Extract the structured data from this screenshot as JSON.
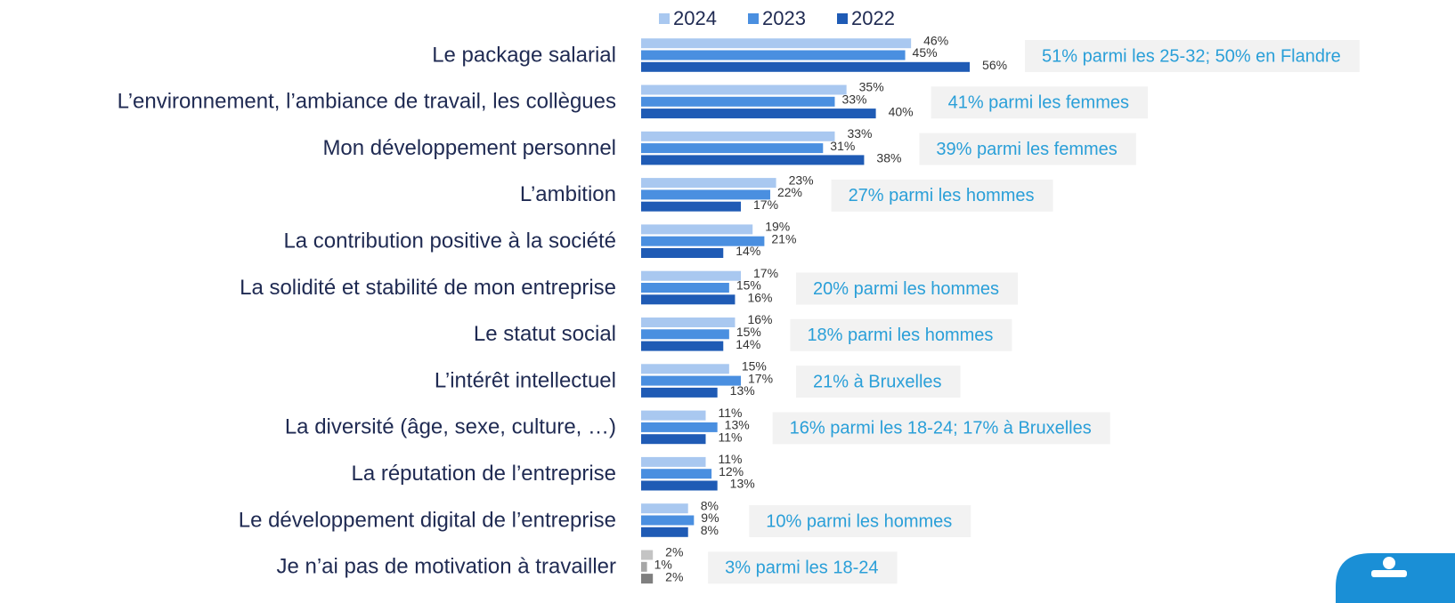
{
  "chart_data": {
    "type": "bar",
    "orientation": "horizontal",
    "categories": [
      "Le package salarial",
      "L’environnement, l’ambiance de travail, les collègues",
      "Mon développement personnel",
      "L’ambition",
      "La contribution positive à la société",
      "La solidité et stabilité de mon entreprise",
      "Le statut social",
      "L’intérêt intellectuel",
      "La diversité (âge, sexe, culture, …)",
      "La réputation de l’entreprise",
      "Le développement digital de l’entreprise",
      "Je n’ai pas de motivation à travailler"
    ],
    "series": [
      {
        "name": "2024",
        "color": "#a9c8f0",
        "colors": [
          "#a9c8f0",
          "#a9c8f0",
          "#a9c8f0",
          "#a9c8f0",
          "#a9c8f0",
          "#a9c8f0",
          "#a9c8f0",
          "#a9c8f0",
          "#a9c8f0",
          "#a9c8f0",
          "#a9c8f0",
          "#c4c4c4"
        ],
        "values": [
          46,
          35,
          33,
          23,
          19,
          17,
          16,
          15,
          11,
          11,
          8,
          2
        ],
        "value_labels": [
          "46%",
          "35%",
          "33%",
          "23%",
          "19%",
          "17%",
          "16%",
          "15%",
          "11%",
          "11%",
          "8%",
          "2%"
        ]
      },
      {
        "name": "2023",
        "color": "#4a8fe0",
        "colors": [
          "#4a8fe0",
          "#4a8fe0",
          "#4a8fe0",
          "#4a8fe0",
          "#4a8fe0",
          "#4a8fe0",
          "#4a8fe0",
          "#4a8fe0",
          "#4a8fe0",
          "#4a8fe0",
          "#4a8fe0",
          "#a6a6a6"
        ],
        "values": [
          45,
          33,
          31,
          22,
          21,
          15,
          15,
          17,
          13,
          12,
          9,
          1
        ],
        "value_labels": [
          "45%",
          "33%",
          "31%",
          "22%",
          "21%",
          "15%",
          "15%",
          "17%",
          "13%",
          "12%",
          "9%",
          "1%"
        ]
      },
      {
        "name": "2022",
        "color": "#1f5bb5",
        "colors": [
          "#1f5bb5",
          "#1f5bb5",
          "#1f5bb5",
          "#1f5bb5",
          "#1f5bb5",
          "#1f5bb5",
          "#1f5bb5",
          "#1f5bb5",
          "#1f5bb5",
          "#1f5bb5",
          "#1f5bb5",
          "#7f7f7f"
        ],
        "values": [
          56,
          40,
          38,
          17,
          14,
          16,
          14,
          13,
          11,
          13,
          8,
          2
        ],
        "value_labels": [
          "56%",
          "40%",
          "38%",
          "17%",
          "14%",
          "16%",
          "14%",
          "13%",
          "11%",
          "13%",
          "8%",
          "2%"
        ]
      }
    ],
    "annotations": [
      "51% parmi les 25-32; 50% en Flandre",
      "41% parmi les femmes",
      "39% parmi les femmes",
      "27% parmi les hommes",
      null,
      "20% parmi les hommes",
      "18% parmi les hommes",
      "21% à Bruxelles",
      "16% parmi les 18-24; 17% à Bruxelles",
      null,
      "10% parmi les hommes",
      "3% parmi les 18-24"
    ],
    "legend": "top"
  }
}
